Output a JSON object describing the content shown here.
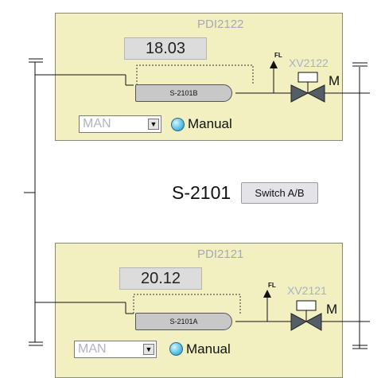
{
  "unit": {
    "label": "S-2101",
    "switch_button": "Switch A/B"
  },
  "trains": [
    {
      "pdi_tag": "PDI2122",
      "pdi_value": "18.03",
      "filter_label": "S-2101B",
      "valve_tag": "XV2122",
      "motor_label": "M",
      "fl_label": "FL",
      "mode": "MAN",
      "status": "Manual"
    },
    {
      "pdi_tag": "PDI2121",
      "pdi_value": "20.12",
      "filter_label": "S-2101A",
      "valve_tag": "XV2121",
      "motor_label": "M",
      "fl_label": "FL",
      "mode": "MAN",
      "status": "Manual"
    }
  ],
  "colors": {
    "panel": "#f2f0c0",
    "tag_text": "#a9b0c8",
    "status_indicator": "#5ec3e8",
    "valve": "#555e66"
  }
}
